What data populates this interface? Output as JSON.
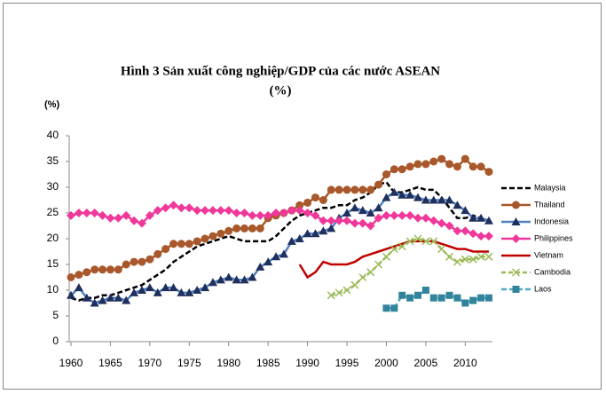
{
  "chart_data": {
    "type": "line",
    "title_lines": [
      "Hình 3  Sản xuất công nghiệp/GDP của các nước ASEAN",
      "(%)"
    ],
    "y_label": "(%)",
    "x": [
      1960,
      1961,
      1962,
      1963,
      1964,
      1965,
      1966,
      1967,
      1968,
      1969,
      1970,
      1971,
      1972,
      1973,
      1974,
      1975,
      1976,
      1977,
      1978,
      1979,
      1980,
      1981,
      1982,
      1983,
      1984,
      1985,
      1986,
      1987,
      1988,
      1989,
      1990,
      1991,
      1992,
      1993,
      1994,
      1995,
      1996,
      1997,
      1998,
      1999,
      2000,
      2001,
      2002,
      2003,
      2004,
      2005,
      2006,
      2007,
      2008,
      2009,
      2010,
      2011,
      2012,
      2013
    ],
    "xlim": [
      1960,
      2013
    ],
    "xticks": [
      1960,
      1965,
      1970,
      1975,
      1980,
      1985,
      1990,
      1995,
      2000,
      2005,
      2010
    ],
    "ylim": [
      0,
      40
    ],
    "yticks": [
      0,
      5,
      10,
      15,
      20,
      25,
      30,
      35,
      40
    ],
    "grid": false,
    "legend": "right",
    "series": [
      {
        "name": "Malaysia",
        "color": "#000000",
        "dash": "6,3",
        "marker": "none",
        "values": [
          8.5,
          8,
          8.5,
          8.5,
          9,
          9,
          9.5,
          10,
          10.5,
          11,
          12,
          13,
          14,
          15.5,
          16.5,
          17.5,
          18.5,
          19,
          19.5,
          20,
          20.5,
          20,
          19.5,
          19.5,
          19.5,
          19.5,
          20.5,
          22,
          23.5,
          24.5,
          25,
          25.5,
          26,
          26,
          26.5,
          26.5,
          27.5,
          28,
          29,
          30.5,
          31,
          29,
          29,
          29.5,
          30,
          29.5,
          29.5,
          28,
          26,
          24,
          24,
          24.5,
          24,
          23.5
        ]
      },
      {
        "name": "Thailand",
        "color": "#a8582a",
        "marker": "circle",
        "values": [
          12.5,
          13,
          13.5,
          14,
          14,
          14,
          14,
          15,
          15.5,
          15.5,
          16,
          17,
          18,
          19,
          19,
          19,
          19.5,
          20,
          20.5,
          21,
          21.5,
          22,
          22,
          22,
          22,
          24,
          24.5,
          25,
          25.5,
          26.5,
          27,
          28,
          27.5,
          29.5,
          29.5,
          29.5,
          29.5,
          29.5,
          29.5,
          30.5,
          32.5,
          33.5,
          33.5,
          34,
          34.5,
          34.5,
          35,
          35.5,
          34.5,
          34,
          35.5,
          34,
          34,
          33
        ]
      },
      {
        "name": "Indonesia",
        "color": "#4f81bd",
        "marker_color": "#1f2f5e",
        "marker": "triangle",
        "values": [
          9,
          10.5,
          8.5,
          7.5,
          8,
          8.5,
          8.5,
          8,
          9.5,
          10,
          10.5,
          9.5,
          10.5,
          10.5,
          9.5,
          9.5,
          10,
          10.5,
          11.5,
          12,
          12.5,
          12,
          12,
          12.5,
          14.5,
          15.5,
          16.5,
          17,
          19.5,
          20,
          21,
          21,
          21.5,
          22,
          24,
          25,
          26,
          25.5,
          25,
          26,
          28,
          29,
          28.5,
          28.5,
          28,
          27.5,
          27.5,
          27.5,
          27.5,
          26.5,
          25.5,
          24,
          24,
          23.5
        ]
      },
      {
        "name": "Philippines",
        "color": "#f0389a",
        "marker": "diamond",
        "values": [
          24.5,
          25,
          25,
          25,
          24.5,
          24,
          24,
          24.5,
          23.5,
          23,
          24.5,
          25.5,
          26,
          26.5,
          26,
          26,
          25.5,
          25.5,
          25.5,
          25.5,
          25.5,
          25,
          25,
          24.5,
          24.5,
          24.5,
          25,
          25,
          25.5,
          25.5,
          25,
          24.5,
          23.5,
          23.5,
          23.5,
          23.5,
          23,
          23,
          22.5,
          24,
          24.5,
          24.5,
          24.5,
          24.5,
          24,
          24,
          23.5,
          23,
          22.5,
          21.5,
          21.5,
          21,
          20.5,
          20.5
        ]
      },
      {
        "name": "Vietnam",
        "color": "#c00000",
        "marker": "none",
        "values": [
          null,
          null,
          null,
          null,
          null,
          null,
          null,
          null,
          null,
          null,
          null,
          null,
          null,
          null,
          null,
          null,
          null,
          null,
          null,
          null,
          null,
          null,
          null,
          null,
          null,
          null,
          null,
          null,
          null,
          15,
          12.5,
          13.5,
          15.5,
          15,
          15,
          15,
          15.5,
          16.5,
          17,
          17.5,
          18,
          18.5,
          19,
          19.5,
          19.5,
          19.5,
          19.5,
          19,
          18.5,
          18,
          18,
          17.5,
          17.5,
          17.5
        ]
      },
      {
        "name": "Cambodia",
        "color": "#9bbb59",
        "dash": "5,3",
        "marker": "x",
        "values": [
          null,
          null,
          null,
          null,
          null,
          null,
          null,
          null,
          null,
          null,
          null,
          null,
          null,
          null,
          null,
          null,
          null,
          null,
          null,
          null,
          null,
          null,
          null,
          null,
          null,
          null,
          null,
          null,
          null,
          null,
          null,
          null,
          null,
          9,
          9.5,
          10,
          11,
          12.5,
          13.5,
          15,
          16.5,
          18,
          18.5,
          19.5,
          20,
          19.5,
          19.5,
          18,
          16.5,
          15.5,
          16,
          16,
          16.5,
          16.5
        ]
      },
      {
        "name": "Laos",
        "color": "#4bacc6",
        "marker_color": "#31849b",
        "dash": "6,3",
        "marker": "square",
        "values": [
          null,
          null,
          null,
          null,
          null,
          null,
          null,
          null,
          null,
          null,
          null,
          null,
          null,
          null,
          null,
          null,
          null,
          null,
          null,
          null,
          null,
          null,
          null,
          null,
          null,
          null,
          null,
          null,
          null,
          null,
          null,
          null,
          null,
          null,
          null,
          null,
          null,
          null,
          null,
          null,
          6.5,
          6.5,
          9,
          8.5,
          9,
          10,
          8.5,
          8.5,
          9,
          8.5,
          7.5,
          8,
          8.5,
          8.5
        ]
      }
    ]
  }
}
